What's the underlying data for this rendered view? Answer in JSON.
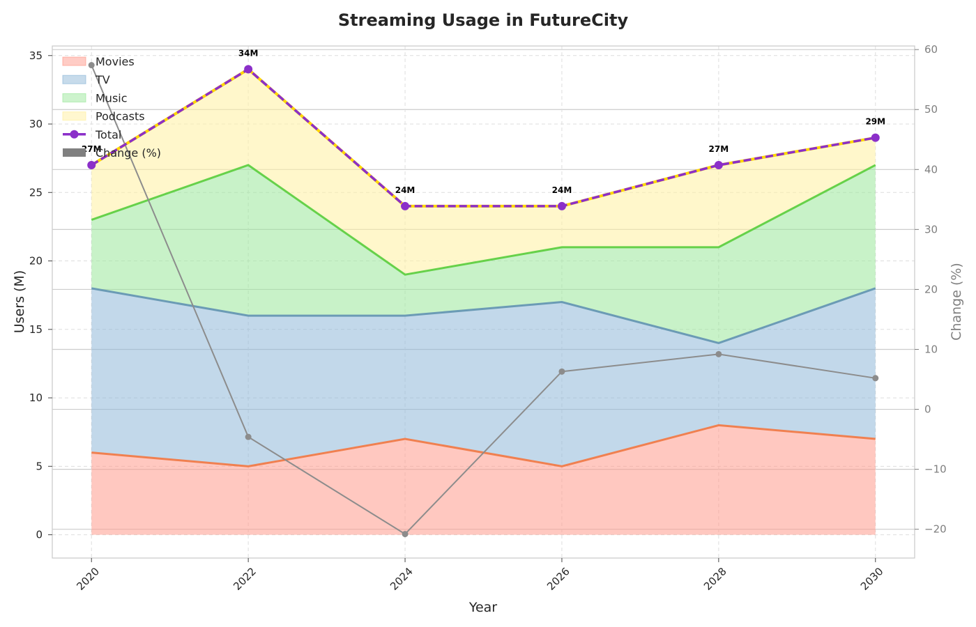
{
  "chart_data": {
    "type": "area",
    "title": "Streaming Usage in FutureCity",
    "xlabel": "Year",
    "ylabel": "Users (M)",
    "ylabel_right": "Change (%)",
    "x": [
      2020,
      2022,
      2024,
      2026,
      2028,
      2030
    ],
    "xlim": [
      2019.5,
      2030.5
    ],
    "ylim": [
      -1.7,
      35.7
    ],
    "yticks": [
      0,
      5,
      10,
      15,
      20,
      25,
      30,
      35
    ],
    "ylim_right": [
      -24.8,
      60.6
    ],
    "yticks_right": [
      -20,
      -10,
      0,
      10,
      20,
      30,
      40,
      50,
      60
    ],
    "xtick_rotation": 45,
    "grid": true,
    "legend_position": "top-left",
    "stacked_series": [
      {
        "name": "Movies",
        "values": [
          6,
          5,
          7,
          5,
          8,
          7
        ],
        "fill": "#ff9a8c",
        "line": "#f08050"
      },
      {
        "name": "TV",
        "values": [
          12,
          11,
          9,
          12,
          6,
          11
        ],
        "fill": "#8fb8d8",
        "line": "#6b9bb5"
      },
      {
        "name": "Music",
        "values": [
          5,
          11,
          3,
          4,
          7,
          9
        ],
        "fill": "#9be89b",
        "line": "#66d14a"
      },
      {
        "name": "Podcasts",
        "values": [
          4,
          7,
          5,
          3,
          6,
          2
        ],
        "fill": "#fff0a0",
        "line": "#ffd700"
      }
    ],
    "total": {
      "name": "Total",
      "values": [
        27,
        34,
        24,
        24,
        27,
        29
      ],
      "color": "#8b2fc9",
      "labels": [
        "27M",
        "34M",
        "24M",
        "24M",
        "27M",
        "29M"
      ]
    },
    "change": {
      "name": "Change (%)",
      "values": [
        57.4,
        -4.6,
        -20.8,
        6.3,
        9.2,
        5.2
      ],
      "color": "#8c8c8c"
    }
  }
}
